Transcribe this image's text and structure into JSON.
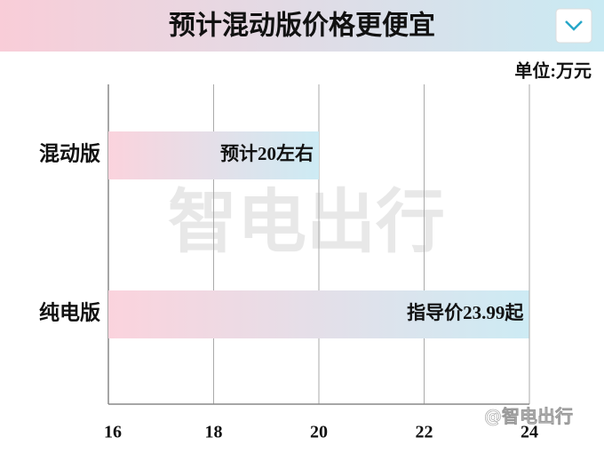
{
  "chart_data": {
    "type": "hbar",
    "title": "预计混动版价格更便宜",
    "unit_label": "单位:万元",
    "categories": [
      "混动版",
      "纯电版"
    ],
    "values": [
      20,
      23.99
    ],
    "value_labels": [
      "预计20左右",
      "指导价23.99起"
    ],
    "xlim": [
      16,
      24
    ],
    "xticks": [
      16,
      18,
      20,
      22,
      24
    ],
    "grid": true,
    "watermark": "智电出行",
    "credit": "@智电出行"
  }
}
